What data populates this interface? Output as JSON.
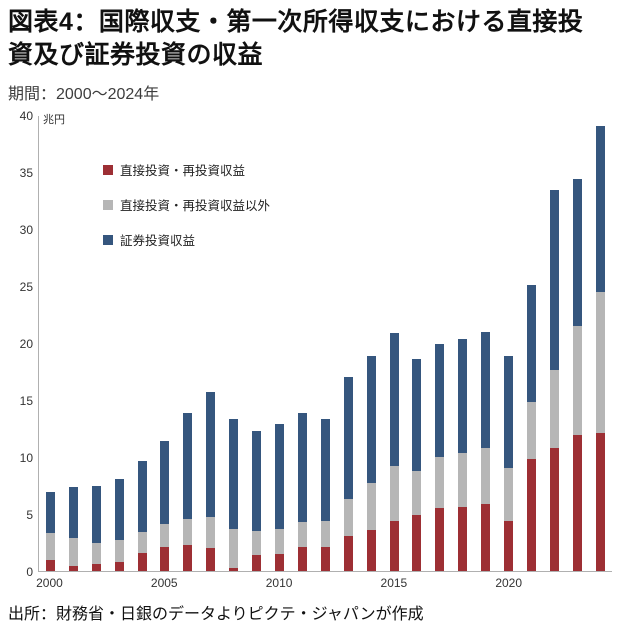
{
  "title": "図表4：国際収支・第一次所得収支における直接投資及び証券投資の収益",
  "subtitle": "期間：2000～2024年",
  "source": "出所：財務省・日銀のデータよりピクテ・ジャパンが作成",
  "chart_data": {
    "type": "bar",
    "stacked": true,
    "title": "図表4：国際収支・第一次所得収支における直接投資及び証券投資の収益",
    "ylabel": "兆円",
    "ylim": [
      0,
      40
    ],
    "ytick_step": 5,
    "grid": false,
    "legend_position": "upper-left-inside",
    "categories": [
      "2000",
      "2001",
      "2002",
      "2003",
      "2004",
      "2005",
      "2006",
      "2007",
      "2008",
      "2009",
      "2010",
      "2011",
      "2012",
      "2013",
      "2014",
      "2015",
      "2016",
      "2017",
      "2018",
      "2019",
      "2020",
      "2021",
      "2022",
      "2023",
      "2024"
    ],
    "x_tick_labels": [
      "2000",
      "2005",
      "2010",
      "2015",
      "2020"
    ],
    "series": [
      {
        "name": "直接投資・再投資収益",
        "color": "#9D2F34",
        "values": [
          1.0,
          0.4,
          0.6,
          0.8,
          1.6,
          2.1,
          2.3,
          2.0,
          0.3,
          1.4,
          1.5,
          2.1,
          2.1,
          3.1,
          3.6,
          4.4,
          4.9,
          5.5,
          5.6,
          5.9,
          4.4,
          9.8,
          10.8,
          11.9,
          12.1
        ]
      },
      {
        "name": "直接投資・再投資収益以外",
        "color": "#B6B6B6",
        "values": [
          2.3,
          2.5,
          1.9,
          1.9,
          1.8,
          2.0,
          2.3,
          2.7,
          3.4,
          2.1,
          2.2,
          2.2,
          2.3,
          3.2,
          4.1,
          4.8,
          3.9,
          4.5,
          4.8,
          4.9,
          4.6,
          5.0,
          6.8,
          9.6,
          12.4
        ]
      },
      {
        "name": "証券投資収益",
        "color": "#35567E",
        "values": [
          3.6,
          4.5,
          5.0,
          5.4,
          6.3,
          7.3,
          9.3,
          11.0,
          9.6,
          8.8,
          9.2,
          9.6,
          8.9,
          10.7,
          11.2,
          11.7,
          9.8,
          9.9,
          10.0,
          10.2,
          9.9,
          10.3,
          15.8,
          12.9,
          14.5
        ]
      }
    ]
  }
}
